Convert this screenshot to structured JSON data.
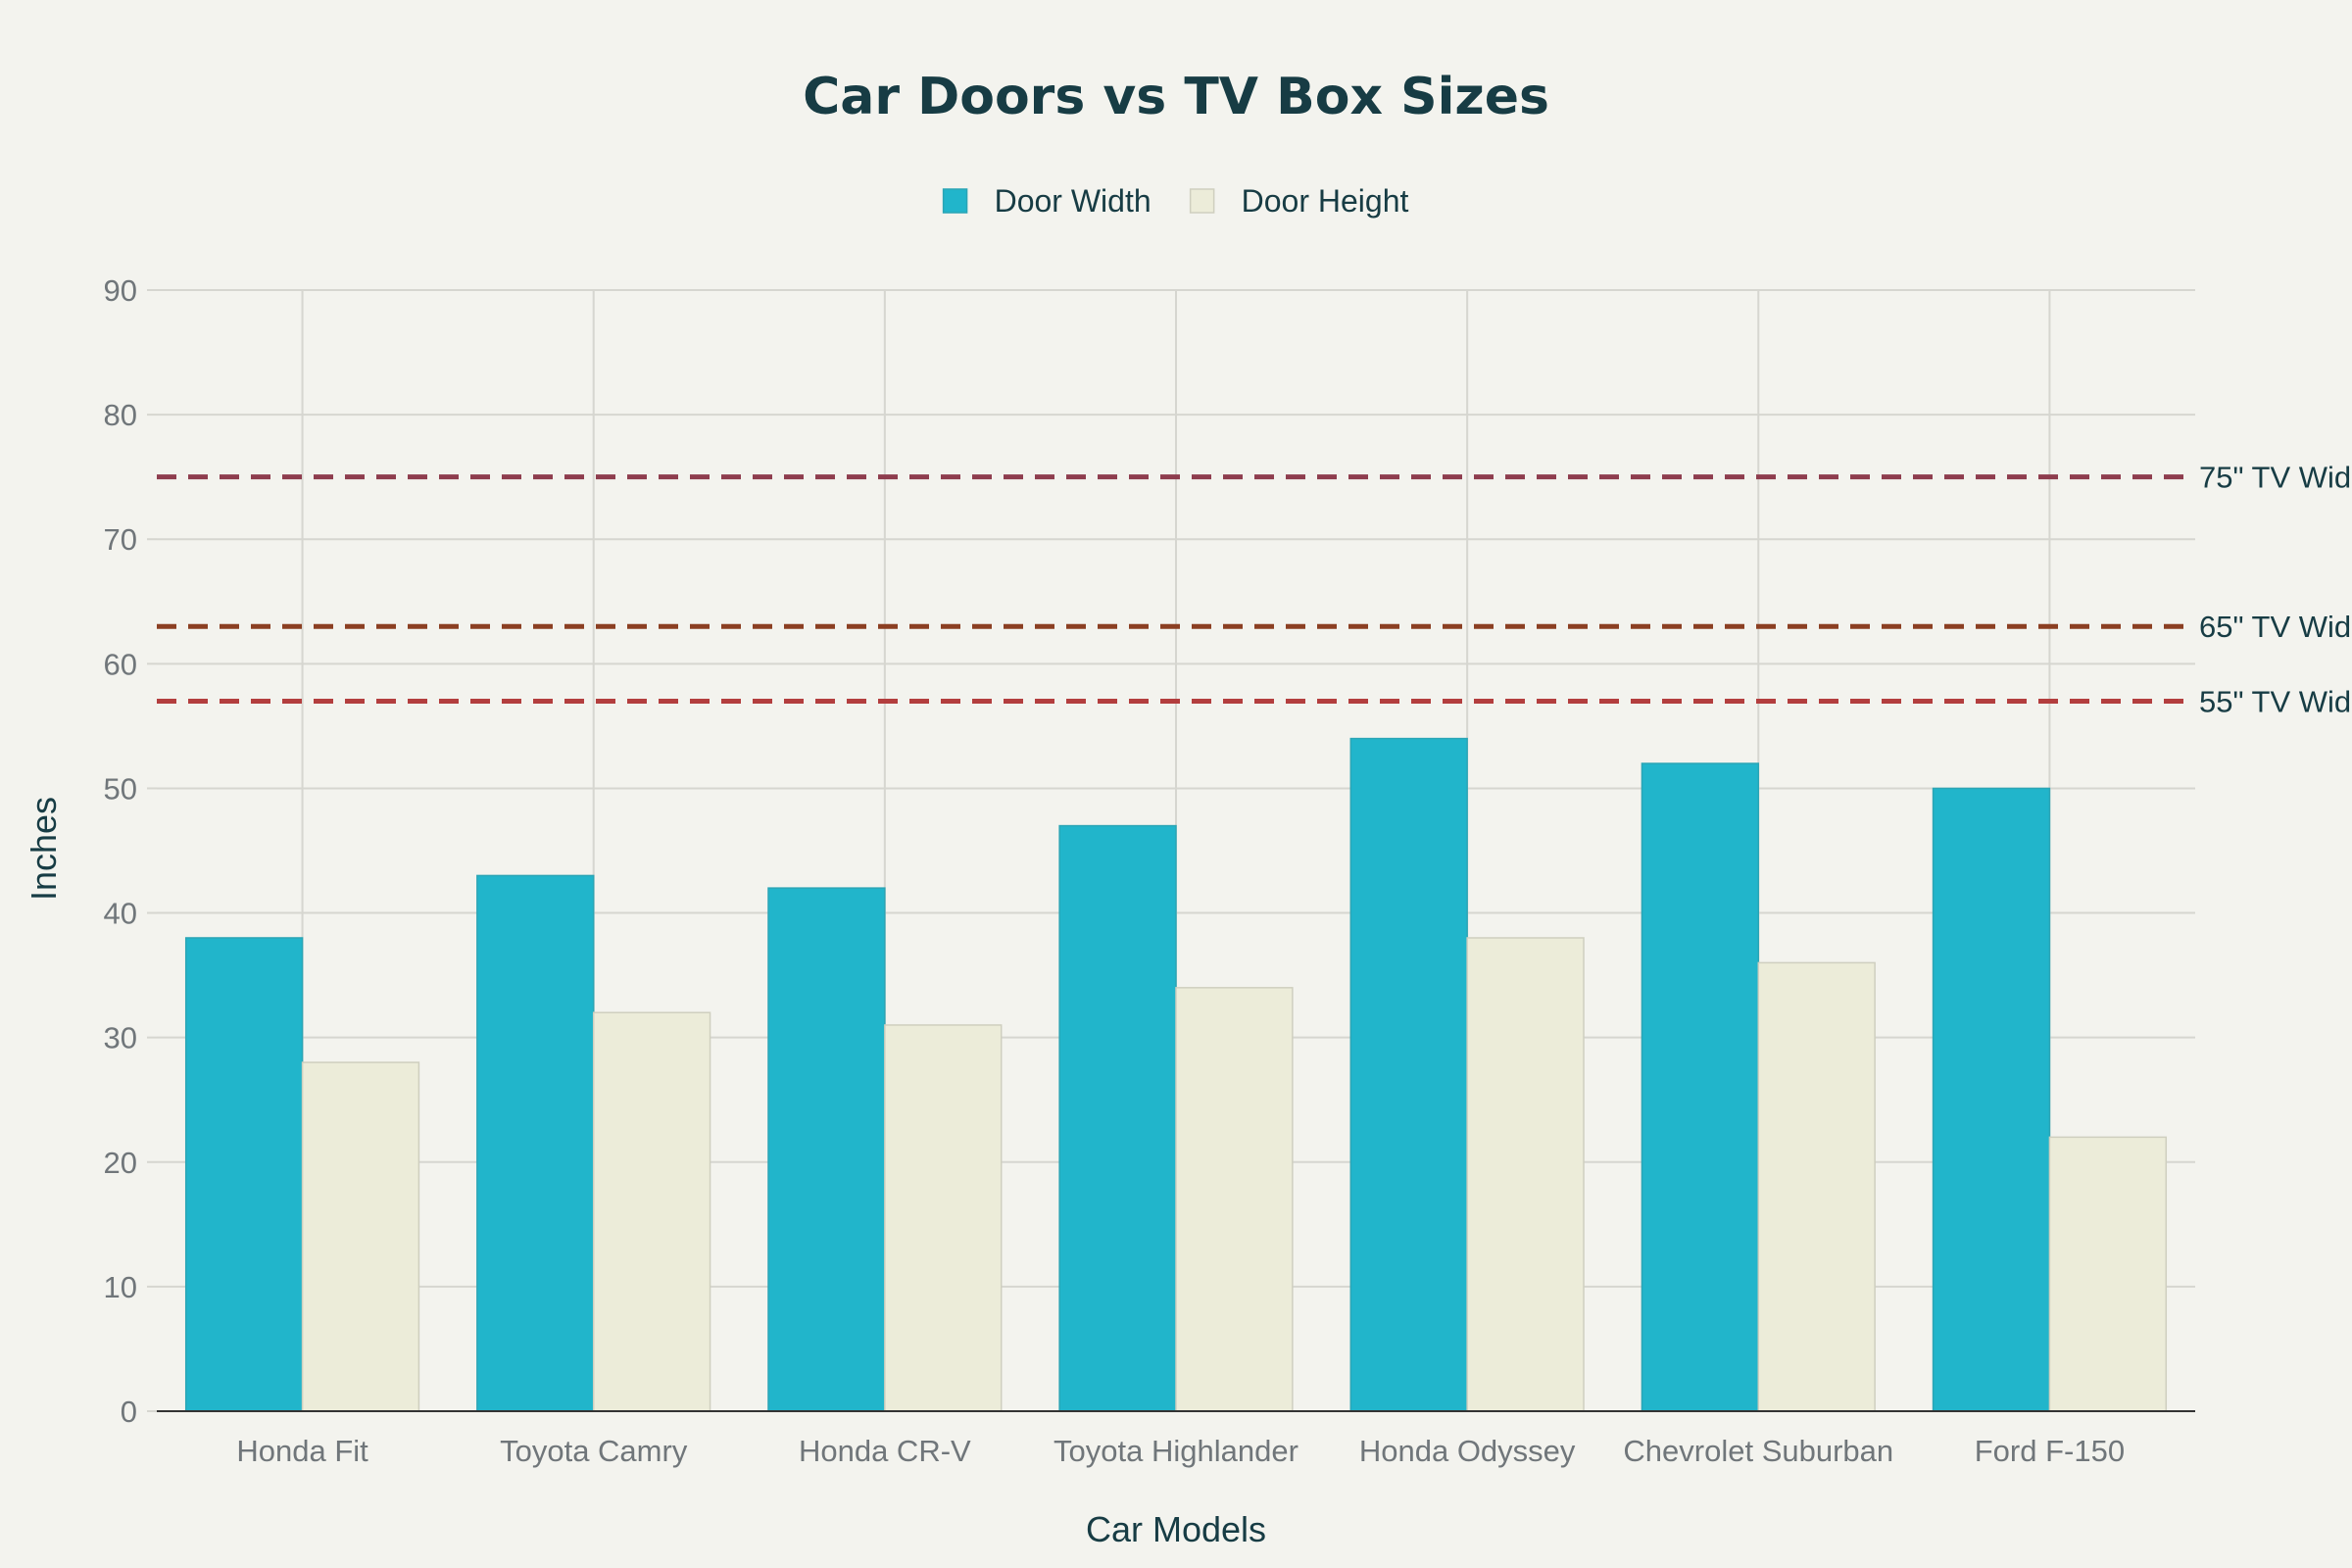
{
  "chart_data": {
    "type": "bar",
    "title": "Car Doors vs TV Box Sizes",
    "xlabel": "Car Models",
    "ylabel": "Inches",
    "ylim": [
      0,
      90
    ],
    "yticks": [
      0,
      10,
      20,
      30,
      40,
      50,
      60,
      70,
      80,
      90
    ],
    "grid": true,
    "legend_position": "top-center",
    "categories": [
      "Honda Fit",
      "Toyota Camry",
      "Honda CR-V",
      "Toyota Highlander",
      "Honda Odyssey",
      "Chevrolet Suburban",
      "Ford F-150"
    ],
    "series": [
      {
        "name": "Door Width",
        "color": "#21b5cb",
        "values": [
          38,
          43,
          42,
          47,
          54,
          52,
          50
        ]
      },
      {
        "name": "Door Height",
        "color": "#ececd9",
        "values": [
          28,
          32,
          31,
          34,
          38,
          36,
          22
        ]
      }
    ],
    "reference_lines": [
      {
        "label": "75\" TV Wid",
        "value": 75,
        "color": "#8e3d4e"
      },
      {
        "label": "65\" TV Wid",
        "value": 63,
        "color": "#8b3f22"
      },
      {
        "label": "55\" TV Wid",
        "value": 57,
        "color": "#b33e3e"
      }
    ]
  }
}
